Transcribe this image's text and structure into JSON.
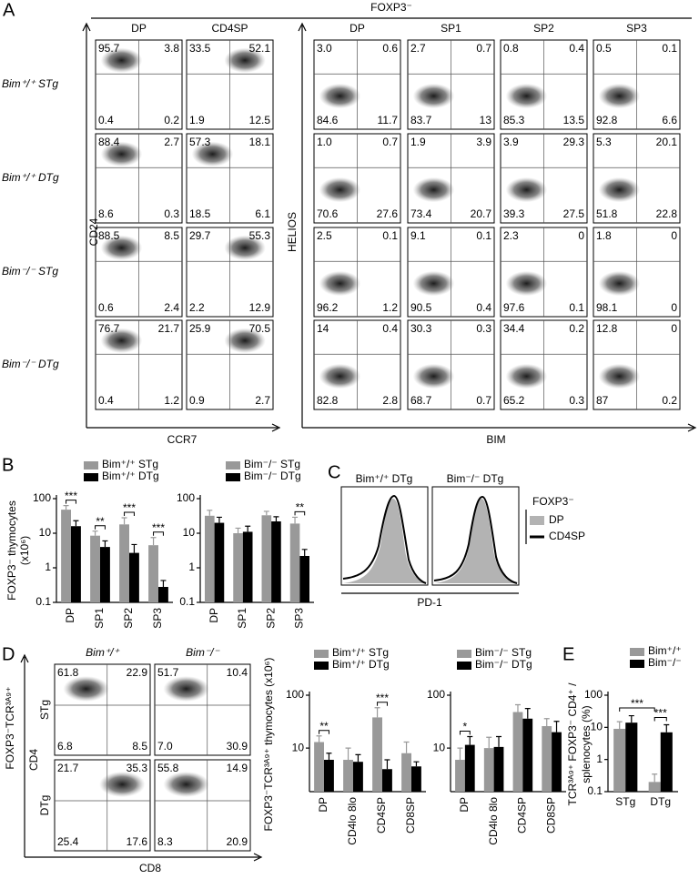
{
  "panel_labels": [
    "A",
    "B",
    "C",
    "D",
    "E"
  ],
  "panel_a": {
    "header": "FOXP3⁻",
    "columns": [
      "DP",
      "CD4SP",
      "DP",
      "SP1",
      "SP2",
      "SP3"
    ],
    "rows": [
      "Bim⁺/⁺ STg",
      "Bim⁺/⁺ DTg",
      "Bim⁻/⁻ STg",
      "Bim⁻/⁻ DTg"
    ],
    "y_label_left": "CD24",
    "x_label_left": "CCR7",
    "y_label_right": "HELIOS",
    "x_label_right": "BIM",
    "quadrants": [
      [
        [
          "95.7",
          "3.8",
          "0.4",
          "0.2"
        ],
        [
          "33.5",
          "52.1",
          "1.9",
          "12.5"
        ],
        [
          "3.0",
          "0.6",
          "84.6",
          "11.7"
        ],
        [
          "2.7",
          "0.7",
          "83.7",
          "13"
        ],
        [
          "0.8",
          "0.4",
          "85.3",
          "13.5"
        ],
        [
          "0.5",
          "0.1",
          "92.8",
          "6.6"
        ]
      ],
      [
        [
          "88.4",
          "2.7",
          "8.6",
          "0.3"
        ],
        [
          "57.3",
          "18.1",
          "18.5",
          "6.1"
        ],
        [
          "1.0",
          "0.7",
          "70.6",
          "27.6"
        ],
        [
          "1.9",
          "3.9",
          "73.4",
          "20.7"
        ],
        [
          "3.9",
          "29.3",
          "39.3",
          "27.5"
        ],
        [
          "5.3",
          "20.1",
          "51.8",
          "22.8"
        ]
      ],
      [
        [
          "88.5",
          "8.5",
          "0.6",
          "2.4"
        ],
        [
          "29.7",
          "55.3",
          "2.2",
          "12.9"
        ],
        [
          "2.5",
          "0.1",
          "96.2",
          "1.2"
        ],
        [
          "9.1",
          "0.1",
          "90.5",
          "0.4"
        ],
        [
          "2.3",
          "0",
          "97.6",
          "0.1"
        ],
        [
          "1.8",
          "0",
          "98.1",
          "0"
        ]
      ],
      [
        [
          "76.7",
          "21.7",
          "0.4",
          "1.2"
        ],
        [
          "25.9",
          "70.5",
          "0.9",
          "2.7"
        ],
        [
          "14",
          "0.4",
          "82.8",
          "2.8"
        ],
        [
          "30.3",
          "0.3",
          "68.7",
          "0.7"
        ],
        [
          "34.4",
          "0.2",
          "65.2",
          "0.3"
        ],
        [
          "12.8",
          "0",
          "87",
          "0.2"
        ]
      ]
    ]
  },
  "panel_c": {
    "titles": [
      "Bim⁺/⁺ DTg",
      "Bim⁻/⁻ DTg"
    ],
    "legend_title": "FOXP3⁻",
    "legend": [
      "DP",
      "CD4SP"
    ],
    "x_label": "PD-1"
  },
  "panel_d": {
    "side_label": "FOXP3⁻TCR³ᴬ⁹⁺",
    "columns": [
      "Bim⁺/⁺",
      "Bim⁻/⁻"
    ],
    "rows": [
      "STg",
      "DTg"
    ],
    "y_label": "CD4",
    "x_label": "CD8",
    "quadrants": [
      [
        [
          "61.8",
          "22.9",
          "6.8",
          "8.5"
        ],
        [
          "51.7",
          "10.4",
          "7.0",
          "30.9"
        ]
      ],
      [
        [
          "21.7",
          "35.3",
          "25.4",
          "17.6"
        ],
        [
          "55.8",
          "14.9",
          "8.3",
          "20.9"
        ]
      ]
    ]
  },
  "chart_data": [
    {
      "type": "bar",
      "y_label": [
        "FOXP3⁻ thymocytes",
        "(x10⁶)"
      ],
      "categories": [
        "DP",
        "SP1",
        "SP2",
        "SP3"
      ],
      "series": [
        {
          "name": "Bim⁺/⁺ STg",
          "color": "#999999",
          "values": [
            48,
            8.5,
            18,
            4.5
          ],
          "errors": [
            15,
            3,
            10,
            3
          ]
        },
        {
          "name": "Bim⁺/⁺ DTg",
          "color": "#000000",
          "values": [
            16,
            4,
            2.7,
            0.28
          ],
          "errors": [
            7,
            2,
            2,
            0.15
          ]
        }
      ],
      "significance": [
        "***",
        "**",
        "***",
        "***"
      ],
      "log_scale": true,
      "ylim": [
        0.1,
        100
      ],
      "yticks": [
        0.1,
        1,
        10,
        100
      ]
    },
    {
      "type": "bar",
      "categories": [
        "DP",
        "SP1",
        "SP2",
        "SP3"
      ],
      "series": [
        {
          "name": "Bim⁻/⁻ STg",
          "color": "#999999",
          "values": [
            32,
            10,
            33,
            19
          ],
          "errors": [
            14,
            4,
            10,
            10
          ]
        },
        {
          "name": "Bim⁻/⁻ DTg",
          "color": "#000000",
          "values": [
            20,
            11,
            22,
            2.2
          ],
          "errors": [
            9,
            5,
            8,
            1.2
          ]
        }
      ],
      "significance": [
        null,
        null,
        null,
        "**"
      ],
      "log_scale": true,
      "ylim": [
        0.1,
        100
      ],
      "yticks": [
        0.1,
        1,
        10,
        100
      ]
    },
    {
      "type": "bar",
      "y_label": [
        "FOXP3⁻TCR³ᴬ⁹⁺ thymocytes (x10⁶)"
      ],
      "categories": [
        "DP",
        "CD4lo 8lo",
        "CD4SP",
        "CD8SP"
      ],
      "series": [
        {
          "name": "Bim⁺/⁺ STg",
          "color": "#999999",
          "values": [
            13,
            6,
            38,
            8
          ],
          "errors": [
            4,
            4,
            20,
            5
          ]
        },
        {
          "name": "Bim⁺/⁺ DTg",
          "color": "#000000",
          "values": [
            6,
            5.5,
            4,
            4.5
          ],
          "errors": [
            2,
            2,
            2,
            1
          ]
        }
      ],
      "significance": [
        "**",
        null,
        "***",
        null
      ],
      "log_scale": true,
      "ylim": [
        1.5,
        100
      ],
      "yticks": [
        10,
        100
      ]
    },
    {
      "type": "bar",
      "categories": [
        "DP",
        "CD4lo 8lo",
        "CD4SP",
        "CD8SP"
      ],
      "series": [
        {
          "name": "Bim⁻/⁻ STg",
          "color": "#999999",
          "values": [
            6,
            10,
            48,
            26
          ],
          "errors": [
            4,
            6,
            18,
            10
          ]
        },
        {
          "name": "Bim⁻/⁻ DTg",
          "color": "#000000",
          "values": [
            11.5,
            10.5,
            36,
            20
          ],
          "errors": [
            5,
            6,
            20,
            12
          ]
        }
      ],
      "significance": [
        "*",
        null,
        null,
        null
      ],
      "log_scale": true,
      "ylim": [
        1.5,
        100
      ],
      "yticks": [
        10,
        100
      ]
    },
    {
      "type": "bar",
      "y_label": [
        "TCR³ᴬ⁹⁺ FOXP3⁻ CD4⁺ /",
        "splenocytes (%)"
      ],
      "categories": [
        "STg",
        "DTg"
      ],
      "series": [
        {
          "name": "Bim⁺/⁺",
          "color": "#999999",
          "values": [
            9,
            0.2
          ],
          "errors": [
            6,
            0.15
          ]
        },
        {
          "name": "Bim⁻/⁻",
          "color": "#000000",
          "values": [
            14,
            7
          ],
          "errors": [
            9,
            5
          ]
        }
      ],
      "annotations": [
        "***",
        "***"
      ],
      "log_scale": true,
      "ylim": [
        0.1,
        100
      ],
      "yticks": [
        0.1,
        1,
        10,
        100
      ]
    }
  ]
}
